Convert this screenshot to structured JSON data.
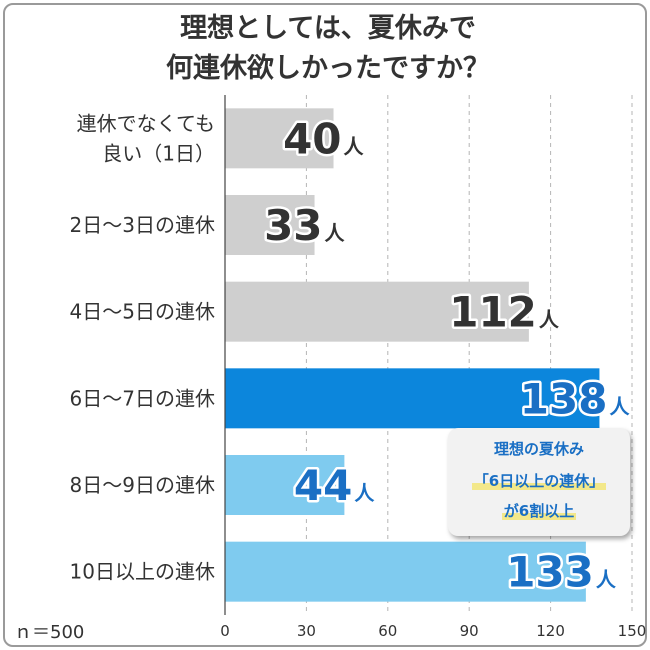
{
  "title_lines": [
    "理想としては、夏休みで",
    "何連休欲しかったですか？"
  ],
  "sample_size": "ｎ＝500",
  "unit": "人",
  "colors": {
    "gray_bar": "#cfcfcf",
    "dark_blue_bar": "#0c86dc",
    "light_blue_bar": "#7fcbef",
    "dark_value_text": "#333333",
    "blue_value_text": "#1a6fc4"
  },
  "callout": {
    "line1": "理想の夏休み",
    "line2": "「6日以上の連休」",
    "line3": "が6割以上"
  },
  "chart_data": {
    "type": "bar",
    "orientation": "horizontal",
    "categories": [
      [
        "連休でなくても",
        "良い（1日）"
      ],
      [
        "2日〜3日の連休"
      ],
      [
        "4日〜5日の連休"
      ],
      [
        "6日〜7日の連休"
      ],
      [
        "8日〜9日の連休"
      ],
      [
        "10日以上の連休"
      ]
    ],
    "values": [
      40,
      33,
      112,
      138,
      44,
      133
    ],
    "bar_colors": [
      "gray",
      "gray",
      "gray",
      "dark_blue",
      "light_blue",
      "light_blue"
    ],
    "xlim": [
      0,
      150
    ],
    "xticks": [
      0,
      30,
      60,
      90,
      120,
      150
    ],
    "grid": "vertical dashed",
    "legend": "none"
  }
}
